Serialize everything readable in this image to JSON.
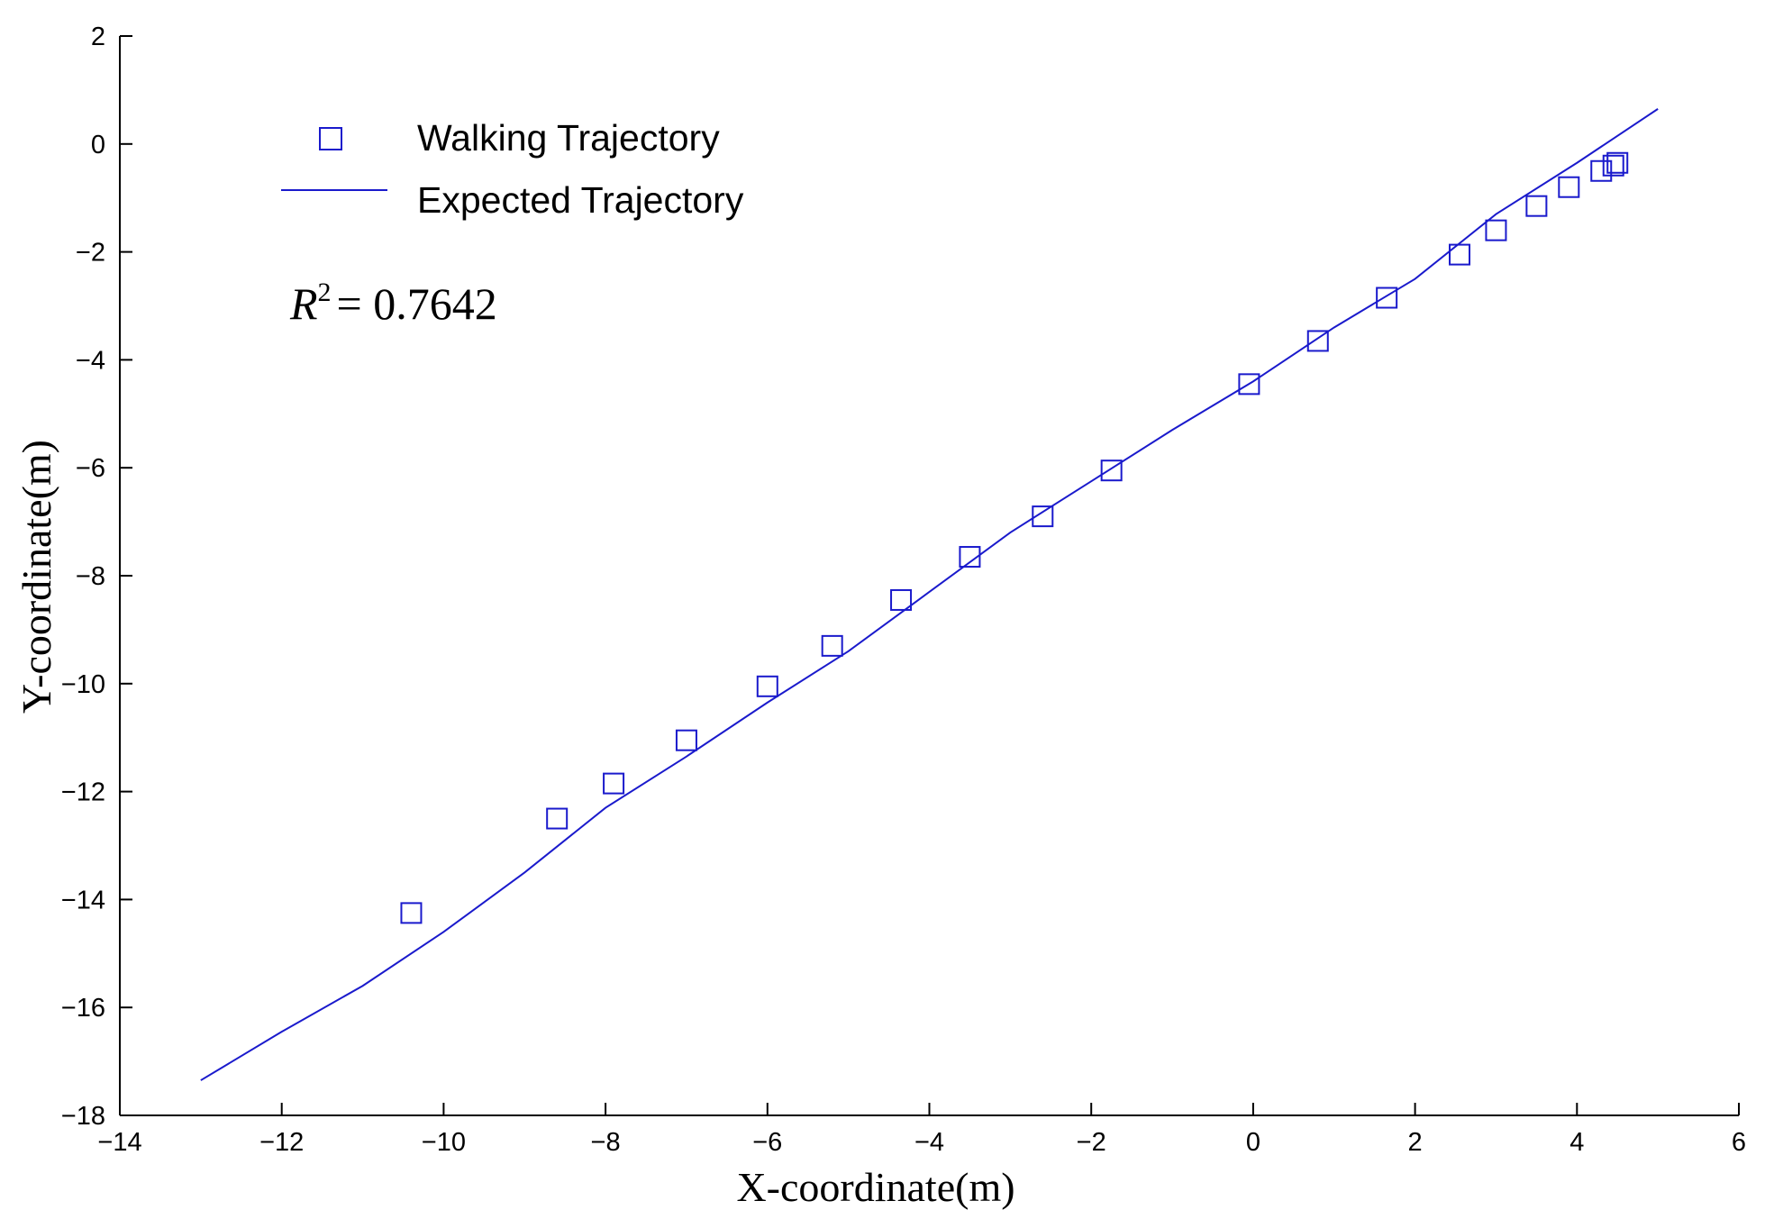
{
  "chart_data": {
    "type": "scatter",
    "xlabel": "X-coordinate(m)",
    "ylabel": "Y-coordinate(m)",
    "xlim": [
      -14,
      6
    ],
    "ylim": [
      -18,
      2
    ],
    "xticks": [
      -14,
      -12,
      -10,
      -8,
      -6,
      -4,
      -2,
      0,
      2,
      4,
      6
    ],
    "yticks": [
      2,
      0,
      -2,
      -4,
      -6,
      -8,
      -10,
      -12,
      -14,
      -16,
      -18
    ],
    "grid": false,
    "legend_position": "top-left",
    "annotation": {
      "symbol": "R",
      "superscript": "2",
      "value": "= 0.7642"
    },
    "series": [
      {
        "name": "Walking Trajectory",
        "marker": "square",
        "color": "#1a1acc",
        "x": [
          -10.4,
          -8.6,
          -7.9,
          -7.0,
          -6.0,
          -5.2,
          -4.35,
          -3.5,
          -2.6,
          -1.75,
          -0.05,
          0.8,
          1.65,
          2.55,
          3.0,
          3.5,
          3.9,
          4.3,
          4.45,
          4.5
        ],
        "y": [
          -14.25,
          -12.5,
          -11.85,
          -11.05,
          -10.05,
          -9.3,
          -8.45,
          -7.65,
          -6.9,
          -6.05,
          -4.45,
          -3.65,
          -2.85,
          -2.05,
          -1.6,
          -1.15,
          -0.8,
          -0.5,
          -0.4,
          -0.35
        ]
      },
      {
        "name": "Expected Trajectory",
        "marker": "line",
        "color": "#1a1acc",
        "x": [
          -13.0,
          -12.0,
          -11.0,
          -10.0,
          -9.0,
          -8.0,
          -7.0,
          -6.0,
          -5.0,
          -4.0,
          -3.0,
          -2.0,
          -1.0,
          0.0,
          1.0,
          2.0,
          3.0,
          4.0,
          5.0
        ],
        "y": [
          -17.35,
          -16.45,
          -15.6,
          -14.6,
          -13.5,
          -12.3,
          -11.35,
          -10.35,
          -9.4,
          -8.3,
          -7.2,
          -6.25,
          -5.3,
          -4.4,
          -3.4,
          -2.5,
          -1.3,
          -0.35,
          0.65
        ]
      }
    ]
  }
}
